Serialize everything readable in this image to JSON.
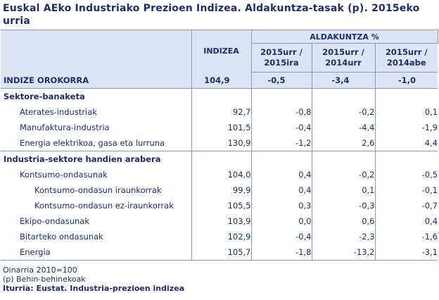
{
  "title": "Euskal AEko Industriako Prezioen Indizea. Aldakuntza-tasak (p). 2015eko urria",
  "header": {
    "group_label": "ALDAKUNTZA %",
    "index_label": "INDIZEA",
    "col1": "2015urr / 2015ira",
    "col2": "2015urr / 2014urr",
    "col3": "2015urr / 2014abe"
  },
  "general": {
    "label": "INDIZE OROKORRA",
    "index": "104,9",
    "c1": "-0,5",
    "c2": "-3,4",
    "c3": "-1,0"
  },
  "sections": [
    {
      "title": "Sektore-banaketa",
      "rows": [
        {
          "label": "Aterates-industriak",
          "index": "92,7",
          "c1": "-0,8",
          "c2": "-0,2",
          "c3": "0,1"
        },
        {
          "label": "Manufaktura-industria",
          "index": "101,5",
          "c1": "-0,4",
          "c2": "-4,4",
          "c3": "-1,9"
        },
        {
          "label": "Energia elektrikoa, gasa eta lurruna",
          "index": "130,9",
          "c1": "-1,2",
          "c2": "2,6",
          "c3": "4,4"
        }
      ]
    },
    {
      "title": "Industria-sektore handien arabera",
      "rows": [
        {
          "label": "Kontsumo-ondasunak",
          "index": "104,0",
          "c1": "0,4",
          "c2": "-0,2",
          "c3": "-0,5"
        },
        {
          "label": "Kontsumo-ondasun iraunkorrak",
          "index": "99,9",
          "c1": "0,4",
          "c2": "0,1",
          "c3": "-0,1"
        },
        {
          "label": "Kontsumo-ondasun ez-iraunkorrak",
          "index": "105,5",
          "c1": "0,3",
          "c2": "-0,3",
          "c3": "-0,7"
        },
        {
          "label": "Ekipo-ondasunak",
          "index": "103,9",
          "c1": "0,0",
          "c2": "0,6",
          "c3": "0,4"
        },
        {
          "label": "Bitarteko ondasunak",
          "index": "102,9",
          "c1": "-0,4",
          "c2": "-2,3",
          "c3": "-1,6"
        },
        {
          "label": "Energia",
          "index": "105,7",
          "c1": "-1,8",
          "c2": "-13,2",
          "c3": "-3,1"
        }
      ]
    }
  ],
  "footer": {
    "base": "Oinarria 2010=100",
    "note": "(p) Behin-behinekoak",
    "source": "Iturria: Eustat. Industria-prezioen indizea"
  },
  "colors": {
    "text": "#1f2d6b",
    "header_bg": "#dde4f4",
    "border": "#8c97c6"
  }
}
